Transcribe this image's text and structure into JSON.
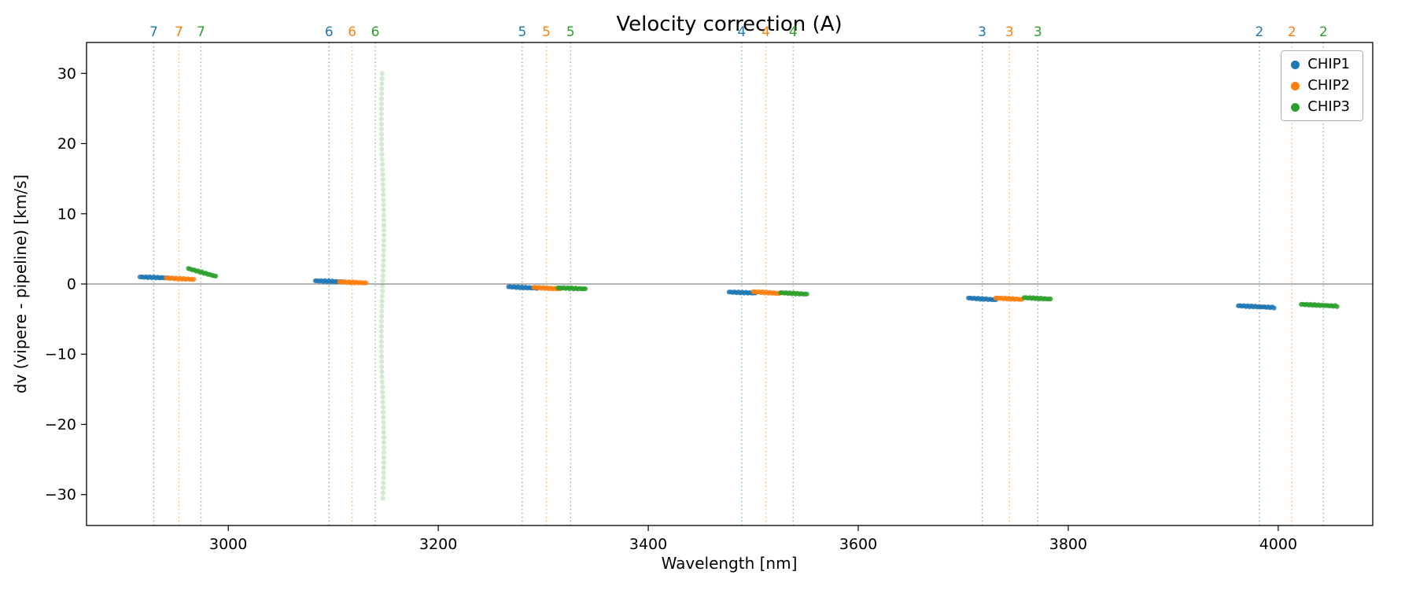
{
  "title": "Velocity correction (A)",
  "xlabel": "Wavelength [nm]",
  "ylabel": "dv (vipere - pipeline) [km/s]",
  "chart_data": {
    "type": "scatter",
    "title": "Velocity correction (A)",
    "xlabel": "Wavelength [nm]",
    "ylabel": "dv (vipere - pipeline) [km/s]",
    "xlim": [
      2865,
      4090
    ],
    "ylim": [
      -34.4,
      34.4
    ],
    "xticks": [
      3000,
      3200,
      3400,
      3600,
      3800,
      4000
    ],
    "yticks": [
      -30,
      -20,
      -10,
      0,
      10,
      20,
      30
    ],
    "grid": false,
    "legend_position": "upper right",
    "zero_line_y": 0,
    "zero_line_color": "#888888",
    "axis_color": "#000000",
    "series": [
      {
        "name": "CHIP1",
        "color": "#1f77b4"
      },
      {
        "name": "CHIP2",
        "color": "#ff7f0e"
      },
      {
        "name": "CHIP3",
        "color": "#2ca02c"
      }
    ],
    "order_markers": [
      {
        "order": "7",
        "chip": "CHIP1",
        "x": 2929
      },
      {
        "order": "7",
        "chip": "CHIP2",
        "x": 2953
      },
      {
        "order": "7",
        "chip": "CHIP3",
        "x": 2974
      },
      {
        "order": "6",
        "chip": "CHIP1",
        "x": 3096
      },
      {
        "order": "6",
        "chip": "CHIP2",
        "x": 3118
      },
      {
        "order": "6",
        "chip": "CHIP3",
        "x": 3140
      },
      {
        "order": "5",
        "chip": "CHIP1",
        "x": 3280
      },
      {
        "order": "5",
        "chip": "CHIP2",
        "x": 3303
      },
      {
        "order": "5",
        "chip": "CHIP3",
        "x": 3326
      },
      {
        "order": "4",
        "chip": "CHIP1",
        "x": 3489
      },
      {
        "order": "4",
        "chip": "CHIP2",
        "x": 3512
      },
      {
        "order": "4",
        "chip": "CHIP3",
        "x": 3538
      },
      {
        "order": "3",
        "chip": "CHIP1",
        "x": 3718
      },
      {
        "order": "3",
        "chip": "CHIP2",
        "x": 3744
      },
      {
        "order": "3",
        "chip": "CHIP3",
        "x": 3771
      },
      {
        "order": "2",
        "chip": "CHIP1",
        "x": 3982
      },
      {
        "order": "2",
        "chip": "CHIP2",
        "x": 4013
      },
      {
        "order": "2",
        "chip": "CHIP3",
        "x": 4043
      }
    ],
    "segments": [
      {
        "chip": "CHIP1",
        "order": "7",
        "x0": 2916,
        "x1": 2944,
        "y0": 1.0,
        "y1": 0.85
      },
      {
        "chip": "CHIP2",
        "order": "7",
        "x0": 2941,
        "x1": 2967,
        "y0": 0.85,
        "y1": 0.65
      },
      {
        "chip": "CHIP3",
        "order": "7",
        "x0": 2962,
        "x1": 2988,
        "y0": 2.2,
        "y1": 1.1
      },
      {
        "chip": "CHIP1",
        "order": "6",
        "x0": 3083,
        "x1": 3110,
        "y0": 0.45,
        "y1": 0.3
      },
      {
        "chip": "CHIP2",
        "order": "6",
        "x0": 3106,
        "x1": 3131,
        "y0": 0.3,
        "y1": 0.15
      },
      {
        "chip": "CHIP1",
        "order": "5",
        "x0": 3267,
        "x1": 3294,
        "y0": -0.4,
        "y1": -0.6
      },
      {
        "chip": "CHIP2",
        "order": "5",
        "x0": 3291,
        "x1": 3316,
        "y0": -0.5,
        "y1": -0.7
      },
      {
        "chip": "CHIP3",
        "order": "5",
        "x0": 3314,
        "x1": 3340,
        "y0": -0.55,
        "y1": -0.7
      },
      {
        "chip": "CHIP1",
        "order": "4",
        "x0": 3477,
        "x1": 3502,
        "y0": -1.15,
        "y1": -1.3
      },
      {
        "chip": "CHIP2",
        "order": "4",
        "x0": 3500,
        "x1": 3525,
        "y0": -1.1,
        "y1": -1.35
      },
      {
        "chip": "CHIP3",
        "order": "4",
        "x0": 3526,
        "x1": 3551,
        "y0": -1.25,
        "y1": -1.45
      },
      {
        "chip": "CHIP1",
        "order": "3",
        "x0": 3705,
        "x1": 3731,
        "y0": -2.0,
        "y1": -2.25
      },
      {
        "chip": "CHIP2",
        "order": "3",
        "x0": 3731,
        "x1": 3756,
        "y0": -2.0,
        "y1": -2.2
      },
      {
        "chip": "CHIP3",
        "order": "3",
        "x0": 3758,
        "x1": 3783,
        "y0": -1.95,
        "y1": -2.15
      },
      {
        "chip": "CHIP1",
        "order": "2",
        "x0": 3962,
        "x1": 3996,
        "y0": -3.1,
        "y1": -3.35
      },
      {
        "chip": "CHIP3",
        "order": "2",
        "x0": 4022,
        "x1": 4056,
        "y0": -2.9,
        "y1": -3.15
      }
    ],
    "outlier_column": {
      "chip": "CHIP3",
      "order": "6",
      "x": 3147,
      "y0": -30.5,
      "y1": 30.5,
      "opacity": 0.22
    }
  }
}
